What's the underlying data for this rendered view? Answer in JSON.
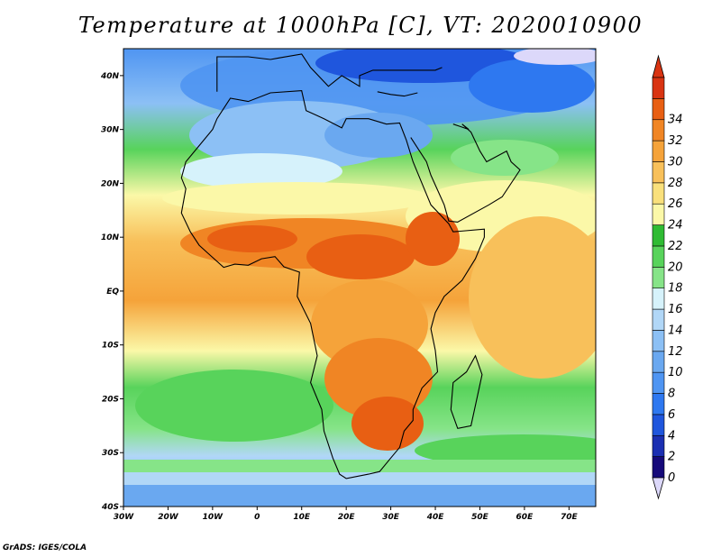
{
  "title": "Temperature at 1000hPa [C], VT: 2020010900",
  "credit": "GrADS: IGES/COLA",
  "map": {
    "lon_range": [
      -30,
      76
    ],
    "lat_range": [
      -40,
      45
    ],
    "lon_ticks": [
      {
        "value": -30,
        "label": "30W"
      },
      {
        "value": -20,
        "label": "20W"
      },
      {
        "value": -10,
        "label": "10W"
      },
      {
        "value": 0,
        "label": "0"
      },
      {
        "value": 10,
        "label": "10E"
      },
      {
        "value": 20,
        "label": "20E"
      },
      {
        "value": 30,
        "label": "30E"
      },
      {
        "value": 40,
        "label": "40E"
      },
      {
        "value": 50,
        "label": "50E"
      },
      {
        "value": 60,
        "label": "60E"
      },
      {
        "value": 70,
        "label": "70E"
      }
    ],
    "lat_ticks": [
      {
        "value": 40,
        "label": "40N"
      },
      {
        "value": 30,
        "label": "30N"
      },
      {
        "value": 20,
        "label": "20N"
      },
      {
        "value": 10,
        "label": "10N"
      },
      {
        "value": 0,
        "label": "EQ"
      },
      {
        "value": -10,
        "label": "10S"
      },
      {
        "value": -20,
        "label": "20S"
      },
      {
        "value": -30,
        "label": "30S"
      },
      {
        "value": -40,
        "label": "40S"
      }
    ],
    "coastline": [
      [
        -17,
        21
      ],
      [
        -16,
        24
      ],
      [
        -13,
        27
      ],
      [
        -10,
        30
      ],
      [
        -9,
        32
      ],
      [
        -6,
        35.8
      ],
      [
        -2,
        35.2
      ],
      [
        3,
        36.8
      ],
      [
        10,
        37.2
      ],
      [
        11,
        33.5
      ],
      [
        15,
        32
      ],
      [
        19,
        30.3
      ],
      [
        20,
        32
      ],
      [
        25,
        32
      ],
      [
        29,
        31
      ],
      [
        32,
        31.2
      ],
      [
        33.5,
        28
      ],
      [
        35,
        24
      ],
      [
        37,
        20
      ],
      [
        39,
        16
      ],
      [
        43,
        12.5
      ],
      [
        44,
        11
      ],
      [
        51,
        11.5
      ],
      [
        51,
        10
      ],
      [
        49,
        6
      ],
      [
        46,
        2
      ],
      [
        42,
        -1
      ],
      [
        40,
        -4
      ],
      [
        39,
        -7
      ],
      [
        40,
        -11
      ],
      [
        40.5,
        -15
      ],
      [
        37,
        -18
      ],
      [
        35,
        -22
      ],
      [
        35,
        -24
      ],
      [
        33,
        -26
      ],
      [
        32,
        -29
      ],
      [
        30,
        -31
      ],
      [
        27.5,
        -33.5
      ],
      [
        25,
        -34
      ],
      [
        20,
        -34.8
      ],
      [
        18.5,
        -34
      ],
      [
        17,
        -31
      ],
      [
        15,
        -26
      ],
      [
        14.5,
        -22
      ],
      [
        12,
        -17
      ],
      [
        13.5,
        -12
      ],
      [
        12,
        -6
      ],
      [
        9,
        -1
      ],
      [
        9.5,
        3.5
      ],
      [
        6,
        4.5
      ],
      [
        4,
        6.4
      ],
      [
        1,
        6
      ],
      [
        -2,
        4.8
      ],
      [
        -5,
        5
      ],
      [
        -7.5,
        4.4
      ],
      [
        -11,
        7
      ],
      [
        -13,
        8.5
      ],
      [
        -15,
        11
      ],
      [
        -17,
        14.5
      ],
      [
        -16,
        19
      ],
      [
        -17,
        21
      ]
    ],
    "madagascar": [
      [
        49,
        -12
      ],
      [
        50.5,
        -15.5
      ],
      [
        48,
        -25
      ],
      [
        45,
        -25.5
      ],
      [
        43.5,
        -22
      ],
      [
        44,
        -17
      ],
      [
        47,
        -15
      ]
    ],
    "arabia": [
      [
        34.5,
        28.5
      ],
      [
        38,
        24
      ],
      [
        39,
        21.5
      ],
      [
        42,
        16
      ],
      [
        43,
        13
      ],
      [
        45,
        12.8
      ],
      [
        52,
        16
      ],
      [
        55,
        17.5
      ],
      [
        59,
        22.5
      ],
      [
        57,
        24
      ],
      [
        56,
        26
      ],
      [
        51.5,
        24
      ],
      [
        50,
        26
      ],
      [
        48,
        29.5
      ],
      [
        46,
        31
      ],
      [
        47.5,
        30
      ],
      [
        44,
        31
      ]
    ],
    "europe": [
      [
        -9,
        37
      ],
      [
        -9,
        43.5
      ],
      [
        -2,
        43.5
      ],
      [
        3,
        43
      ],
      [
        5,
        43.3
      ],
      [
        10,
        44
      ],
      [
        12,
        41.5
      ],
      [
        16,
        38
      ],
      [
        19,
        40
      ],
      [
        20,
        39.5
      ],
      [
        23,
        38
      ],
      [
        23,
        40
      ],
      [
        26,
        41
      ],
      [
        29,
        41
      ],
      [
        36,
        41
      ],
      [
        40,
        41
      ],
      [
        41.5,
        41.5
      ]
    ],
    "turkey_south": [
      [
        36,
        36.8
      ],
      [
        33,
        36.2
      ],
      [
        30,
        36.5
      ],
      [
        27,
        37
      ]
    ]
  },
  "colorbar": {
    "levels": [
      0,
      2,
      4,
      6,
      8,
      10,
      12,
      14,
      16,
      18,
      20,
      22,
      24,
      26,
      28,
      30,
      32,
      34
    ],
    "colors": [
      "#160a7a",
      "#1b2fb2",
      "#1f56dd",
      "#2e78f0",
      "#4f95f2",
      "#6aa8f0",
      "#8cc0f5",
      "#b1d7f7",
      "#d6f2fb",
      "#86e488",
      "#58d35b",
      "#2fbb33",
      "#fbf8a8",
      "#f9e07c",
      "#f8c05a",
      "#f5a33a",
      "#f08524",
      "#e85f13",
      "#d93412"
    ],
    "under_color": "#dcd8fa"
  }
}
